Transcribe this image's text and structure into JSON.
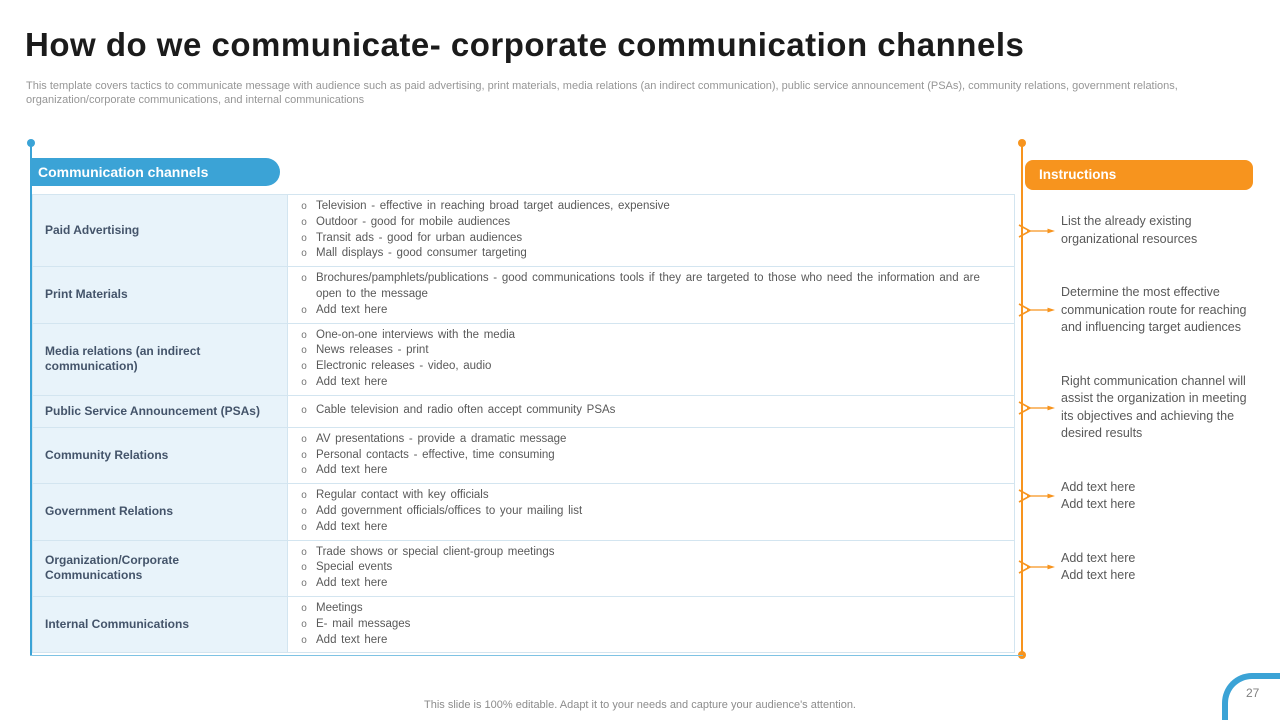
{
  "title": "How do we communicate- corporate communication channels",
  "subtitle": "This template covers tactics to  communicate message with audience such as paid advertising, print materials, media relations (an indirect communication), public service announcement (PSAs), community relations, government relations, organization/corporate communications, and internal communications",
  "table": {
    "header": "Communication channels",
    "rows": [
      {
        "label": "Paid Advertising",
        "bullets": [
          "Television - effective in reaching broad target audiences, expensive",
          "Outdoor - good for mobile audiences",
          "Transit ads - good for urban audiences",
          "Mall displays - good consumer targeting"
        ]
      },
      {
        "label": "Print Materials",
        "bullets": [
          "Brochures/pamphlets/publications - good communications tools if they are targeted to those who need the information and are open to the message",
          "Add text here"
        ]
      },
      {
        "label": "Media relations (an indirect communication)",
        "bullets": [
          "One-on-one interviews with the media",
          "News releases - print",
          "Electronic releases - video, audio",
          "Add text here"
        ]
      },
      {
        "label": "Public Service Announcement (PSAs)",
        "bullets": [
          "Cable television and radio often accept community PSAs"
        ]
      },
      {
        "label": "Community Relations",
        "bullets": [
          "AV presentations - provide a dramatic message",
          "Personal contacts - effective, time consuming",
          "Add text here"
        ]
      },
      {
        "label": "Government Relations",
        "bullets": [
          "Regular contact with key officials",
          "Add government officials/offices to your mailing list",
          "Add text here"
        ]
      },
      {
        "label": "Organization/Corporate Communications",
        "bullets": [
          "Trade shows or special client-group meetings",
          "Special events",
          "Add text here"
        ]
      },
      {
        "label": "Internal Communications",
        "bullets": [
          "Meetings",
          "E- mail messages",
          "Add text here"
        ]
      }
    ]
  },
  "instructions": {
    "header": "Instructions",
    "items": [
      {
        "lines": [
          "List the already existing organizational resources"
        ]
      },
      {
        "lines": [
          "Determine the most effective communication route for reaching and influencing target audiences"
        ]
      },
      {
        "lines": [
          "Right communication channel will assist the organization in meeting its objectives and achieving the desired results"
        ]
      },
      {
        "lines": [
          "Add text here",
          "Add text here"
        ]
      },
      {
        "lines": [
          "Add text here",
          "Add text here"
        ]
      }
    ]
  },
  "footer": {
    "note": "This slide is 100% editable. Adapt it to your needs and capture your audience's attention.",
    "page_number": "27"
  },
  "colors": {
    "blue": "#3BA3D6",
    "pale_blue": "#E8F3FA",
    "orange": "#F7941E",
    "label_text": "#44546A",
    "body_text": "#595959"
  }
}
